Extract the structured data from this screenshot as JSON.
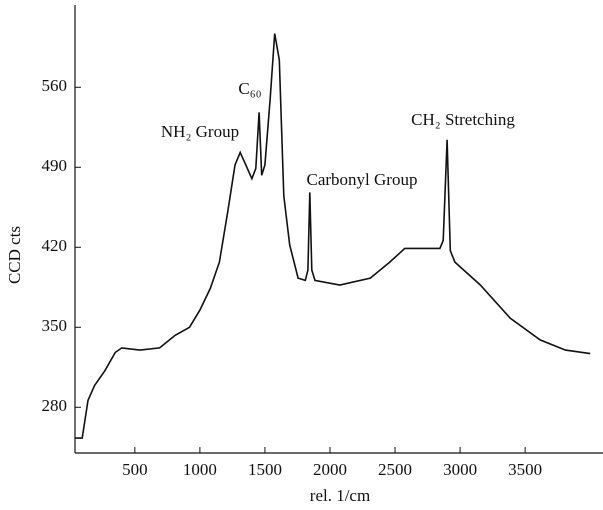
{
  "chart_data": {
    "type": "line",
    "x_label": "rel. 1/cm",
    "y_label": "CCD cts",
    "xlim": [
      40,
      4060
    ],
    "ylim": [
      240,
      627
    ],
    "xticks": [
      500,
      1000,
      1500,
      2000,
      2500,
      3000,
      3500
    ],
    "yticks": [
      280,
      350,
      420,
      490,
      560
    ],
    "annotations": [
      "NH₂ Group",
      "C₆₀",
      "Carbonyl Group",
      "CH₂ Stretching"
    ],
    "series": [
      {
        "color": "#111111",
        "x": [
          40,
          95,
          140,
          190,
          270,
          350,
          400,
          540,
          690,
          810,
          920,
          1000,
          1080,
          1150,
          1215,
          1270,
          1310,
          1345,
          1400,
          1430,
          1455,
          1475,
          1500,
          1540,
          1575,
          1610,
          1645,
          1690,
          1755,
          1810,
          1830,
          1845,
          1860,
          1885,
          2075,
          2310,
          2460,
          2575,
          2845,
          2870,
          2900,
          2925,
          2960,
          3155,
          3385,
          3615,
          3810,
          4000
        ],
        "values": [
          253,
          253,
          286,
          299,
          312,
          328,
          332,
          330,
          332,
          343,
          350,
          365,
          384,
          407,
          452,
          492,
          503,
          494,
          480,
          489,
          538,
          483,
          492,
          549,
          607,
          584,
          465,
          422,
          393,
          391,
          400,
          468,
          400,
          391,
          387,
          393,
          407,
          419,
          419,
          426,
          514,
          417,
          407,
          387,
          358,
          339,
          330,
          327
        ]
      }
    ]
  }
}
